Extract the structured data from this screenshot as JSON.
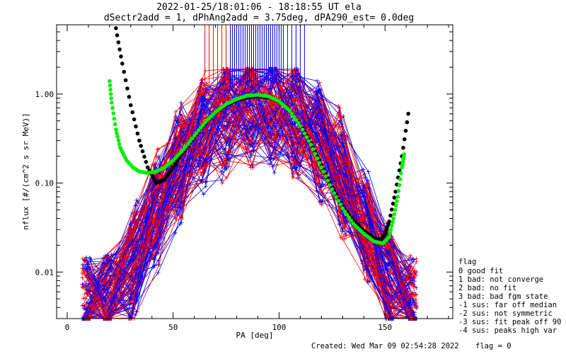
{
  "header": {
    "title_line1": "2022-01-25/18:01:06 - 18:18:55 UT ela",
    "title_line2": "dSectr2add = 1, dPhAng2add = 3.75deg, dPA290_est=   0.0deg"
  },
  "footer": {
    "created": "Created: Wed Mar 09 02:54:28 2022",
    "flag": "flag = 0"
  },
  "legend": {
    "title": "flag",
    "entries": [
      " 0 good fit",
      " 1 bad: not converge",
      " 2 bad: no fit",
      " 3 bad: bad fgm state",
      "-1 sus: far off median",
      "-2 sus: not symmetric",
      "-3 sus: fit peak off 90",
      "-4 sus: peaks high var"
    ]
  },
  "colors": {
    "red": "#ff0000",
    "blue": "#0000ff",
    "black": "#000000",
    "green": "#00ee00"
  },
  "chart_data": {
    "type": "line",
    "xlabel": "PA [deg]",
    "ylabel": "nflux [#/(cm^2 s sr MeV)]",
    "xlim": [
      -5,
      182
    ],
    "ylim": [
      0.003,
      6.0
    ],
    "yscale": "log",
    "xticks": [
      0,
      50,
      100,
      150
    ],
    "yticks": [
      0.01,
      0.1,
      1.0
    ],
    "ytick_labels": [
      "0.01",
      "0.10",
      "1.00"
    ],
    "series": [
      {
        "name": "fit-black",
        "color": "#000000",
        "x": [
          23,
          26,
          30,
          34,
          38,
          42,
          46,
          50,
          55,
          60,
          65,
          70,
          75,
          80,
          85,
          90,
          95,
          100,
          105,
          110,
          115,
          120,
          125,
          130,
          135,
          140,
          145,
          148,
          150,
          152,
          155,
          158,
          161
        ],
        "y": [
          5.5,
          2.2,
          0.75,
          0.3,
          0.15,
          0.1,
          0.11,
          0.15,
          0.23,
          0.33,
          0.47,
          0.62,
          0.75,
          0.85,
          0.92,
          0.95,
          0.92,
          0.83,
          0.65,
          0.45,
          0.28,
          0.16,
          0.09,
          0.055,
          0.038,
          0.029,
          0.024,
          0.023,
          0.027,
          0.037,
          0.08,
          0.2,
          0.6
        ]
      },
      {
        "name": "fit-green",
        "color": "#00ee00",
        "x": [
          20,
          21,
          23,
          25,
          28,
          31,
          34,
          38,
          42,
          46,
          50,
          55,
          60,
          65,
          70,
          75,
          80,
          85,
          90,
          95,
          100,
          105,
          110,
          115,
          120,
          125,
          130,
          135,
          140,
          145,
          149,
          152,
          154,
          156,
          158,
          159
        ],
        "y": [
          1.4,
          0.8,
          0.4,
          0.25,
          0.18,
          0.15,
          0.135,
          0.13,
          0.135,
          0.15,
          0.18,
          0.24,
          0.34,
          0.48,
          0.63,
          0.77,
          0.88,
          0.96,
          0.98,
          0.94,
          0.83,
          0.65,
          0.44,
          0.27,
          0.15,
          0.085,
          0.052,
          0.035,
          0.027,
          0.022,
          0.021,
          0.025,
          0.04,
          0.07,
          0.15,
          0.21
        ]
      },
      {
        "name": "upper-spikes-red",
        "color": "#ff0000",
        "x": [
          65,
          67,
          69,
          71,
          73,
          75,
          77,
          79,
          81,
          83,
          85,
          87,
          89
        ],
        "y": [
          5.9,
          5.9,
          5.9,
          5.9,
          5.9,
          5.9,
          5.9,
          5.9,
          5.9,
          5.9,
          5.9,
          5.9,
          5.9
        ]
      },
      {
        "name": "upper-spikes-blue",
        "color": "#0000ff",
        "x": [
          77,
          78,
          79,
          80,
          81,
          82,
          83,
          84,
          85,
          86,
          87,
          88,
          89,
          90,
          91,
          92,
          93,
          94,
          95,
          96,
          97,
          98,
          99,
          100,
          101,
          102,
          104,
          106,
          108,
          110,
          112
        ],
        "y": [
          5.9,
          5.9,
          5.9,
          5.9,
          5.9,
          5.9,
          5.9,
          5.9,
          5.9,
          5.9,
          5.9,
          5.9,
          5.9,
          5.9,
          5.9,
          5.9,
          5.9,
          5.9,
          5.9,
          5.9,
          5.9,
          5.9,
          5.9,
          5.9,
          5.9,
          5.9,
          5.9,
          5.9,
          5.9,
          5.9,
          5.9
        ]
      }
    ]
  }
}
